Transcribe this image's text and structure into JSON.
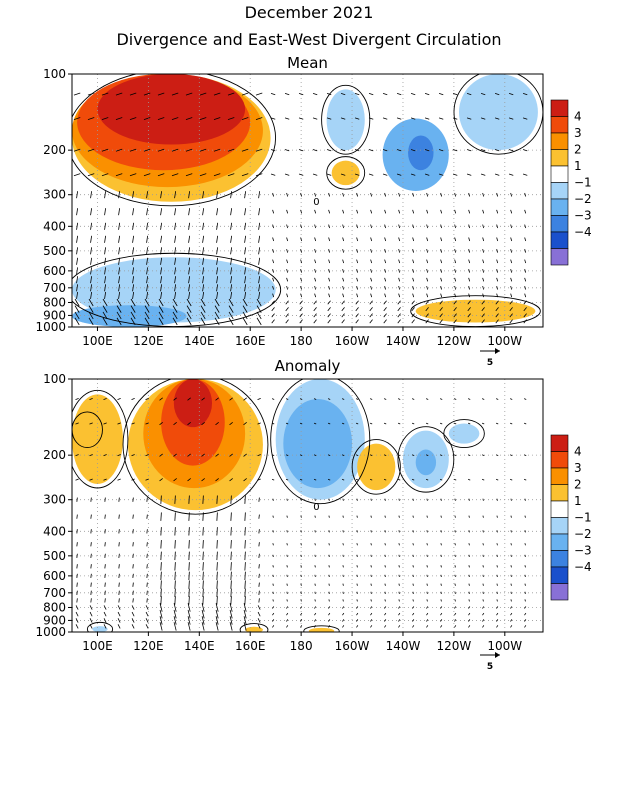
{
  "header": {
    "title": "December 2021",
    "subtitle": "Divergence and East-West Divergent Circulation"
  },
  "chart_data": [
    {
      "type": "heatmap",
      "title": "Mean",
      "x_tick_labels": [
        "100E",
        "120E",
        "140E",
        "160E",
        "180",
        "160W",
        "140W",
        "120W",
        "100W"
      ],
      "x_ticks_lon": [
        100,
        120,
        140,
        160,
        180,
        200,
        220,
        240,
        260
      ],
      "xlim_lon": [
        90,
        275
      ],
      "y_tick_labels": [
        "100",
        "200",
        "300",
        "400",
        "500",
        "600",
        "700",
        "800",
        "900",
        "1000"
      ],
      "y_ticks_hpa": [
        100,
        200,
        300,
        400,
        500,
        600,
        700,
        800,
        900,
        1000
      ],
      "ylim_hpa": [
        100,
        1000
      ],
      "y_scale": "log-pressure",
      "grid": true,
      "colorbar": {
        "labels": [
          "4",
          "3",
          "2",
          "1",
          "−1",
          "−2",
          "−3",
          "−4"
        ],
        "colors": [
          "#cc1e14",
          "#f04b0a",
          "#fa9000",
          "#fbc131",
          "#ffffff",
          "#a6d4f7",
          "#69b2f0",
          "#3c82e0",
          "#1a50cc",
          "#8870d6"
        ]
      },
      "contour_label": "0",
      "vector_scale_label": "5",
      "features": [
        {
          "sign": "positive",
          "level": 4,
          "lon": [
            100,
            158
          ],
          "p": [
            100,
            190
          ]
        },
        {
          "sign": "positive",
          "level": 3,
          "lon": [
            92,
            160
          ],
          "p": [
            100,
            240
          ]
        },
        {
          "sign": "positive",
          "level": 2,
          "lon": [
            90,
            165
          ],
          "p": [
            100,
            280
          ]
        },
        {
          "sign": "positive",
          "level": 1,
          "lon": [
            90,
            168
          ],
          "p": [
            100,
            320
          ]
        },
        {
          "sign": "negative",
          "level": 2,
          "lon": [
            212,
            238
          ],
          "p": [
            150,
            290
          ]
        },
        {
          "sign": "negative",
          "level": 3,
          "lon": [
            222,
            232
          ],
          "p": [
            175,
            240
          ]
        },
        {
          "sign": "negative",
          "level": 1,
          "lon": [
            242,
            273
          ],
          "p": [
            100,
            200
          ]
        },
        {
          "sign": "negative",
          "level": 1,
          "lon": [
            190,
            205
          ],
          "p": [
            115,
            200
          ]
        },
        {
          "sign": "positive",
          "level": 1,
          "lon": [
            192,
            203
          ],
          "p": [
            220,
            275
          ]
        },
        {
          "sign": "negative",
          "level": 1,
          "lon": [
            90,
            170
          ],
          "p": [
            530,
            960
          ]
        },
        {
          "sign": "negative",
          "level": 2,
          "lon": [
            90,
            135
          ],
          "p": [
            820,
            1000
          ]
        },
        {
          "sign": "positive",
          "level": 1,
          "lon": [
            225,
            272
          ],
          "p": [
            780,
            960
          ]
        }
      ]
    },
    {
      "type": "heatmap",
      "title": "Anomaly",
      "x_tick_labels": [
        "100E",
        "120E",
        "140E",
        "160E",
        "180",
        "160W",
        "140W",
        "120W",
        "100W"
      ],
      "x_ticks_lon": [
        100,
        120,
        140,
        160,
        180,
        200,
        220,
        240,
        260
      ],
      "xlim_lon": [
        90,
        275
      ],
      "y_tick_labels": [
        "100",
        "200",
        "300",
        "400",
        "500",
        "600",
        "700",
        "800",
        "900",
        "1000"
      ],
      "y_ticks_hpa": [
        100,
        200,
        300,
        400,
        500,
        600,
        700,
        800,
        900,
        1000
      ],
      "ylim_hpa": [
        100,
        1000
      ],
      "y_scale": "log-pressure",
      "grid": true,
      "colorbar": {
        "labels": [
          "4",
          "3",
          "2",
          "1",
          "−1",
          "−2",
          "−3",
          "−4"
        ],
        "colors": [
          "#cc1e14",
          "#f04b0a",
          "#fa9000",
          "#fbc131",
          "#ffffff",
          "#a6d4f7",
          "#69b2f0",
          "#3c82e0",
          "#1a50cc",
          "#8870d6"
        ]
      },
      "contour_label": "0",
      "vector_scale_label": "5",
      "features": [
        {
          "sign": "positive",
          "level": 1,
          "lon": [
            90,
            110
          ],
          "p": [
            115,
            260
          ]
        },
        {
          "sign": "positive",
          "level": 1,
          "lon": [
            112,
            165
          ],
          "p": [
            100,
            330
          ]
        },
        {
          "sign": "positive",
          "level": 2,
          "lon": [
            118,
            158
          ],
          "p": [
            100,
            270
          ]
        },
        {
          "sign": "positive",
          "level": 3,
          "lon": [
            125,
            150
          ],
          "p": [
            100,
            220
          ]
        },
        {
          "sign": "positive",
          "level": 4,
          "lon": [
            130,
            145
          ],
          "p": [
            100,
            155
          ]
        },
        {
          "sign": "negative",
          "level": 1,
          "lon": [
            170,
            205
          ],
          "p": [
            100,
            300
          ]
        },
        {
          "sign": "negative",
          "level": 2,
          "lon": [
            173,
            200
          ],
          "p": [
            120,
            270
          ]
        },
        {
          "sign": "positive",
          "level": 1,
          "lon": [
            202,
            217
          ],
          "p": [
            180,
            275
          ]
        },
        {
          "sign": "negative",
          "level": 1,
          "lon": [
            220,
            238
          ],
          "p": [
            160,
            270
          ]
        },
        {
          "sign": "negative",
          "level": 2,
          "lon": [
            225,
            233
          ],
          "p": [
            190,
            240
          ]
        },
        {
          "sign": "negative",
          "level": 1,
          "lon": [
            238,
            250
          ],
          "p": [
            150,
            180
          ]
        },
        {
          "sign": "positive",
          "level": 1,
          "lon": [
            92,
            100
          ],
          "p": [
            140,
            180
          ]
        },
        {
          "sign": "positive",
          "level": 1,
          "lon": [
            158,
            165
          ],
          "p": [
            960,
            1000
          ]
        },
        {
          "sign": "positive",
          "level": 1,
          "lon": [
            183,
            193
          ],
          "p": [
            980,
            1000
          ]
        },
        {
          "sign": "negative",
          "level": 1,
          "lon": [
            98,
            104
          ],
          "p": [
            950,
            1000
          ]
        }
      ]
    }
  ]
}
